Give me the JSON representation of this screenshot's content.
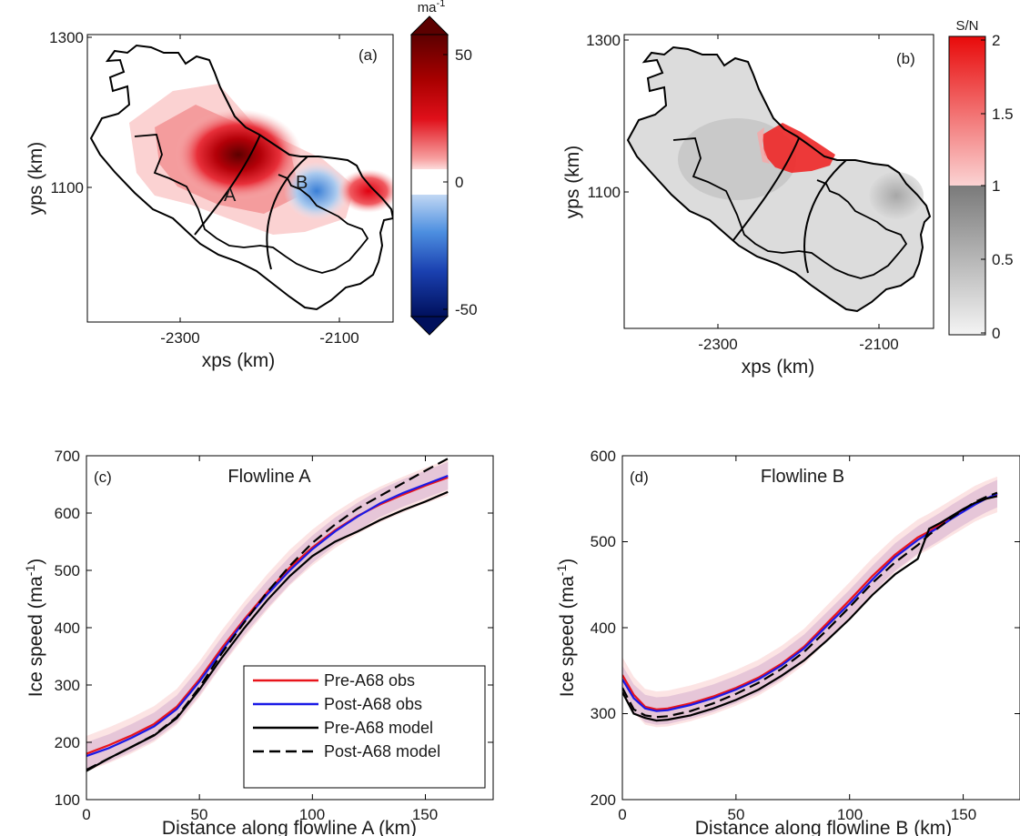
{
  "chart_data": [
    {
      "panel": "(a)",
      "type": "heatmap",
      "title": "",
      "xlabel": "xps (km)",
      "ylabel": "yps (km)",
      "x_ticks": [
        "-2300",
        "-2100"
      ],
      "y_ticks": [
        "1300",
        "1100"
      ],
      "xlim": [
        -2380,
        -2030
      ],
      "ylim": [
        920,
        1300
      ],
      "flowline_labels": [
        "A",
        "B"
      ],
      "colorbar": {
        "title": "ma",
        "title_sup": "-1",
        "ticks": [
          "50",
          "0",
          "-50"
        ],
        "range": [
          -50,
          50
        ],
        "colormap": "blue-white-red, diverging"
      },
      "grid": false
    },
    {
      "panel": "(b)",
      "type": "heatmap",
      "title": "",
      "xlabel": "xps (km)",
      "ylabel": "yps (km)",
      "x_ticks": [
        "-2300",
        "-2100"
      ],
      "y_ticks": [
        "1300",
        "1100"
      ],
      "xlim": [
        -2380,
        -2030
      ],
      "ylim": [
        920,
        1300
      ],
      "colorbar": {
        "title": "S/N",
        "ticks": [
          "2",
          "1.5",
          "1",
          "0.5",
          "0"
        ],
        "range": [
          0,
          2
        ],
        "colormap": "grey below 1, red above 1"
      },
      "grid": false
    },
    {
      "panel": "(c)",
      "type": "line",
      "title": "Flowline A",
      "xlabel": "Distance along flowline A (km)",
      "ylabel": "Ice speed (ma",
      "ylabel_sup": "-1",
      "ylabel_close": ")",
      "xlim": [
        0,
        180
      ],
      "ylim": [
        100,
        700
      ],
      "x_ticks": [
        "0",
        "50",
        "100",
        "150"
      ],
      "y_ticks": [
        "100",
        "200",
        "300",
        "400",
        "500",
        "600",
        "700"
      ],
      "legend_position": "bottom-right",
      "grid": false,
      "x": [
        0,
        10,
        20,
        30,
        40,
        50,
        60,
        70,
        80,
        90,
        100,
        110,
        120,
        130,
        140,
        150,
        160
      ],
      "series": [
        {
          "name": "Pre-A68 obs",
          "color": "#e8141b",
          "style": "solid",
          "values": [
            180,
            195,
            212,
            232,
            262,
            310,
            365,
            415,
            462,
            505,
            540,
            570,
            595,
            615,
            632,
            648,
            662
          ]
        },
        {
          "name": "Post-A68 obs",
          "color": "#1a1ae6",
          "style": "solid",
          "values": [
            176,
            190,
            208,
            228,
            258,
            306,
            360,
            412,
            458,
            500,
            537,
            568,
            594,
            617,
            635,
            650,
            665
          ]
        },
        {
          "name": "Pre-A68 model",
          "color": "#000000",
          "style": "solid",
          "values": [
            150,
            172,
            192,
            212,
            242,
            292,
            348,
            400,
            448,
            490,
            525,
            550,
            568,
            588,
            605,
            620,
            637
          ]
        },
        {
          "name": "Post-A68 model",
          "color": "#000000",
          "style": "dashed",
          "values": [
            152,
            172,
            192,
            213,
            244,
            296,
            356,
            410,
            462,
            508,
            548,
            580,
            608,
            630,
            652,
            674,
            695
          ]
        }
      ]
    },
    {
      "panel": "(d)",
      "type": "line",
      "title": "Flowline B",
      "xlabel": "Distance along flowline B (km)",
      "ylabel": "Ice speed (ma",
      "ylabel_sup": "-1",
      "ylabel_close": ")",
      "xlim": [
        0,
        175
      ],
      "ylim": [
        200,
        600
      ],
      "x_ticks": [
        "0",
        "50",
        "100",
        "150"
      ],
      "y_ticks": [
        "200",
        "300",
        "400",
        "500",
        "600"
      ],
      "grid": false,
      "x": [
        0,
        5,
        10,
        15,
        20,
        30,
        40,
        50,
        60,
        70,
        80,
        90,
        100,
        110,
        120,
        130,
        135,
        140,
        145,
        150,
        155,
        160,
        165
      ],
      "series": [
        {
          "name": "Pre-A68 obs",
          "color": "#e8141b",
          "style": "solid",
          "values": [
            345,
            322,
            308,
            305,
            306,
            312,
            320,
            330,
            342,
            358,
            378,
            405,
            432,
            460,
            485,
            505,
            512,
            520,
            528,
            536,
            544,
            550,
            555
          ]
        },
        {
          "name": "Post-A68 obs",
          "color": "#1a1ae6",
          "style": "solid",
          "values": [
            340,
            318,
            306,
            303,
            304,
            310,
            318,
            328,
            340,
            356,
            376,
            402,
            428,
            456,
            482,
            502,
            510,
            518,
            527,
            535,
            543,
            550,
            556
          ]
        },
        {
          "name": "Pre-A68 model",
          "color": "#000000",
          "style": "solid",
          "values": [
            325,
            300,
            295,
            292,
            293,
            298,
            306,
            316,
            328,
            344,
            362,
            385,
            410,
            438,
            462,
            480,
            515,
            522,
            530,
            538,
            545,
            550,
            553
          ]
        },
        {
          "name": "Post-A68 model",
          "color": "#000000",
          "style": "dashed",
          "values": [
            330,
            305,
            298,
            296,
            297,
            303,
            312,
            323,
            336,
            352,
            372,
            397,
            424,
            452,
            476,
            496,
            508,
            518,
            528,
            537,
            546,
            552,
            557
          ]
        }
      ]
    }
  ]
}
